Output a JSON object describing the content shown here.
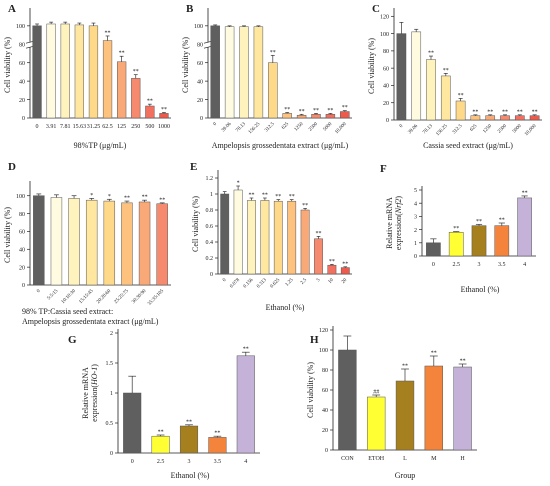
{
  "chart_data": [
    {
      "type": "bar",
      "panel": "A",
      "letter_label": "A",
      "categories": [
        "0",
        "3.91",
        "7.81",
        "15.63",
        "31.25",
        "62.5",
        "125",
        "250",
        "500",
        "1000"
      ],
      "values": [
        100,
        102,
        102,
        101,
        100,
        84,
        61,
        43,
        13,
        5
      ],
      "errors": [
        2,
        2,
        2,
        2,
        3,
        5,
        6,
        4,
        2,
        1
      ],
      "sig": [
        "",
        "",
        "",
        "",
        "",
        "**",
        "**",
        "**",
        "**",
        "**"
      ],
      "xlabel": "98%TP (μg/mL)",
      "ylabel": "Cell viability (%)",
      "yticks": [
        0,
        20,
        40,
        60,
        80,
        100
      ],
      "ylim": [
        0,
        115
      ],
      "axis_break": true,
      "colors": [
        "#5f5f5f",
        "#fffbe0",
        "#fff3bd",
        "#ffe7a0",
        "#ffd98a",
        "#fdc37e",
        "#f9a878",
        "#f58a6e",
        "#f27060",
        "#ee5a4c"
      ]
    },
    {
      "type": "bar",
      "panel": "B",
      "letter_label": "B",
      "categories": [
        "0",
        "39.06",
        "78.13",
        "156.25",
        "312.5",
        "625",
        "1250",
        "2500",
        "5000",
        "10,000"
      ],
      "values": [
        100,
        99,
        99,
        99,
        60,
        5,
        3,
        4,
        4,
        7
      ],
      "errors": [
        1,
        1,
        1,
        1,
        8,
        1,
        1,
        1,
        1,
        1
      ],
      "sig": [
        "",
        "",
        "",
        "",
        "**",
        "**",
        "**",
        "**",
        "**",
        "**"
      ],
      "xlabel": "Ampelopsis grossedentata extract (μg/mL)",
      "ylabel": "Cell viability (%)",
      "yticks": [
        0,
        20,
        40,
        60,
        80,
        100
      ],
      "ylim": [
        0,
        115
      ],
      "axis_break": true,
      "colors": [
        "#5f5f5f",
        "#fffbe0",
        "#fff3bd",
        "#ffe7a0",
        "#ffd98a",
        "#fdc37e",
        "#f9a878",
        "#f58a6e",
        "#f27060",
        "#ee5a4c"
      ]
    },
    {
      "type": "bar",
      "panel": "C",
      "letter_label": "C",
      "categories": [
        "0",
        "39.06",
        "78.13",
        "156.25",
        "312.5",
        "625",
        "1250",
        "2500",
        "5000",
        "10,000"
      ],
      "values": [
        100,
        102,
        70,
        51,
        22,
        5,
        5,
        5,
        5,
        5
      ],
      "errors": [
        13,
        3,
        4,
        3,
        3,
        1,
        1,
        1,
        1,
        1
      ],
      "sig": [
        "",
        "",
        "**",
        "**",
        "**",
        "**",
        "**",
        "**",
        "**",
        "**"
      ],
      "xlabel": "Cassia seed extract (μg/mL)",
      "ylabel": "Cell viability (%)",
      "yticks": [
        0,
        20,
        40,
        60,
        80,
        100,
        120
      ],
      "ylim": [
        0,
        125
      ],
      "axis_break": false,
      "colors": [
        "#5f5f5f",
        "#fffbe0",
        "#fff3bd",
        "#ffe7a0",
        "#ffd98a",
        "#fdc37e",
        "#f9a878",
        "#f58a6e",
        "#f27060",
        "#ee5a4c"
      ]
    },
    {
      "type": "bar",
      "panel": "D",
      "letter_label": "D",
      "categories": [
        "0",
        "5:5:15",
        "10:10:30",
        "15:15:45",
        "20:20:60",
        "25:25:75",
        "30:30:90",
        "35:35:105"
      ],
      "values": [
        100,
        98,
        97,
        95,
        94,
        92,
        93,
        91
      ],
      "errors": [
        2,
        3,
        3,
        2,
        2,
        2,
        2,
        1
      ],
      "sig": [
        "",
        "",
        "",
        "*",
        "*",
        "**",
        "**",
        "**"
      ],
      "xlabel": "98% TP:Cassia seed extract:",
      "xlabel2": "Ampelopsis grossedentata extract (μg/mL)",
      "ylabel": "Cell viability (%)",
      "yticks": [
        0,
        20,
        40,
        60,
        80,
        100
      ],
      "ylim": [
        0,
        112
      ],
      "axis_break": false,
      "colors": [
        "#5f5f5f",
        "#fffbe0",
        "#fff3bd",
        "#ffe7a0",
        "#ffd98a",
        "#fdc37e",
        "#f9a878",
        "#f58a6e"
      ]
    },
    {
      "type": "bar",
      "panel": "E",
      "letter_label": "E",
      "categories": [
        "0",
        "0.078",
        "0.156",
        "0.313",
        "0.625",
        "1.25",
        "2.5",
        "5",
        "10",
        "20"
      ],
      "values": [
        1.0,
        1.05,
        0.92,
        0.92,
        0.91,
        0.91,
        0.8,
        0.44,
        0.11,
        0.08
      ],
      "errors": [
        0.03,
        0.05,
        0.03,
        0.03,
        0.02,
        0.02,
        0.02,
        0.03,
        0.01,
        0.01
      ],
      "sig": [
        "",
        "*",
        "**",
        "**",
        "**",
        "**",
        "**",
        "**",
        "**",
        "**"
      ],
      "xlabel": "Ethanol (%)",
      "ylabel": "Cell viability (%)",
      "yticks": [
        0,
        0.2,
        0.4,
        0.6,
        0.8,
        1.0,
        1.2
      ],
      "ylim": [
        0,
        1.25
      ],
      "axis_break": false,
      "colors": [
        "#5f5f5f",
        "#fffbe0",
        "#fff3bd",
        "#ffe7a0",
        "#ffd98a",
        "#fdc37e",
        "#f9a878",
        "#f58a6e",
        "#f27060",
        "#ee5a4c"
      ]
    },
    {
      "type": "bar",
      "panel": "F",
      "letter_label": "F",
      "categories": [
        "0",
        "2.5",
        "3",
        "3.5",
        "4"
      ],
      "values": [
        1.0,
        1.8,
        2.3,
        2.3,
        4.4
      ],
      "errors": [
        0.3,
        0.05,
        0.1,
        0.2,
        0.15
      ],
      "sig": [
        "",
        "**",
        "**",
        "**",
        "**"
      ],
      "xlabel": "Ethanol (%)",
      "ylabel": "Relative mRNA",
      "ylabel2_prefix": "expression(",
      "ylabel2_gene": "Nrf2",
      "ylabel2_suffix": ")",
      "yticks": [
        0,
        1,
        2,
        3,
        4,
        5
      ],
      "ylim": [
        0,
        5
      ],
      "axis_break": false,
      "colors": [
        "#5f5f5f",
        "#ffff33",
        "#a6801f",
        "#f4843c",
        "#c5b2d8"
      ]
    },
    {
      "type": "bar",
      "panel": "G",
      "letter_label": "G",
      "categories": [
        "0",
        "2.5",
        "3",
        "3.5",
        "4"
      ],
      "values": [
        1.0,
        0.28,
        0.45,
        0.26,
        1.62
      ],
      "errors": [
        0.28,
        0.02,
        0.02,
        0.02,
        0.06
      ],
      "sig": [
        "",
        "**",
        "**",
        "**",
        "**"
      ],
      "xlabel": "Ethanol (%)",
      "ylabel": "Relative mRNA",
      "ylabel2_prefix": "expression(",
      "ylabel2_gene": "HO-1",
      "ylabel2_suffix": ")",
      "yticks": [
        0,
        0.5,
        1.0,
        1.5,
        2.0
      ],
      "ylim": [
        0,
        2.0
      ],
      "axis_break": false,
      "colors": [
        "#5f5f5f",
        "#ffff33",
        "#a6801f",
        "#f4843c",
        "#c5b2d8"
      ]
    },
    {
      "type": "bar",
      "panel": "H",
      "letter_label": "H",
      "categories": [
        "CON",
        "ETOH",
        "L",
        "M",
        "H"
      ],
      "values": [
        100,
        53,
        69,
        84,
        83
      ],
      "errors": [
        14,
        2,
        12,
        10,
        3
      ],
      "sig": [
        "",
        "##",
        "**",
        "**",
        "**"
      ],
      "xlabel": "Group",
      "ylabel": "Cell viability (%)",
      "yticks": [
        0,
        20,
        40,
        60,
        80,
        100,
        120
      ],
      "ylim": [
        0,
        120
      ],
      "axis_break": false,
      "colors": [
        "#5f5f5f",
        "#ffff33",
        "#a6801f",
        "#f4843c",
        "#c5b2d8"
      ]
    }
  ]
}
